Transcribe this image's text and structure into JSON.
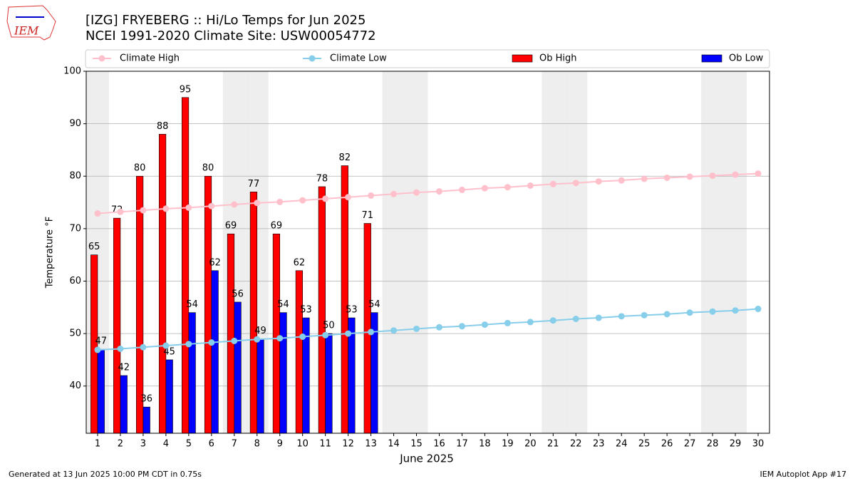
{
  "chart_data": {
    "type": "bar",
    "title": "[IZG] FRYEBERG :: Hi/Lo Temps for Jun 2025",
    "subtitle": "NCEI 1991-2020 Climate Site: USW00054772",
    "logo_text": "IEM",
    "xlabel": "June 2025",
    "ylabel": "Temperature °F",
    "footer_left": "Generated at 13 Jun 2025 10:00 PM CDT in 0.75s",
    "footer_right": "IEM Autoplot App #17",
    "x": [
      1,
      2,
      3,
      4,
      5,
      6,
      7,
      8,
      9,
      10,
      11,
      12,
      13,
      14,
      15,
      16,
      17,
      18,
      19,
      20,
      21,
      22,
      23,
      24,
      25,
      26,
      27,
      28,
      29,
      30
    ],
    "xlim": [
      0.5,
      30.5
    ],
    "ylim": [
      31,
      100
    ],
    "yticks": [
      40,
      50,
      60,
      70,
      80,
      90,
      100
    ],
    "grid": true,
    "shaded_x": [
      1,
      7,
      8,
      14,
      15,
      21,
      22,
      28,
      29
    ],
    "series": [
      {
        "name": "Climate High",
        "type": "line",
        "color": "#ffc0cb",
        "values": [
          72.9,
          73.2,
          73.5,
          73.8,
          74.0,
          74.3,
          74.6,
          74.9,
          75.1,
          75.4,
          75.7,
          76.0,
          76.3,
          76.6,
          76.9,
          77.1,
          77.4,
          77.7,
          77.9,
          78.2,
          78.5,
          78.7,
          79.0,
          79.2,
          79.5,
          79.7,
          79.9,
          80.1,
          80.3,
          80.5
        ]
      },
      {
        "name": "Climate Low",
        "type": "line",
        "color": "#87ceeb",
        "values": [
          46.9,
          47.1,
          47.4,
          47.7,
          48.0,
          48.3,
          48.6,
          48.9,
          49.1,
          49.4,
          49.7,
          50.0,
          50.3,
          50.6,
          50.9,
          51.2,
          51.4,
          51.7,
          52.0,
          52.2,
          52.5,
          52.8,
          53.0,
          53.3,
          53.5,
          53.7,
          54.0,
          54.2,
          54.4,
          54.7
        ]
      },
      {
        "name": "Ob High",
        "type": "bar",
        "color": "#ff0000",
        "values": [
          65,
          72,
          80,
          88,
          95,
          80,
          69,
          77,
          69,
          62,
          78,
          82,
          71,
          null,
          null,
          null,
          null,
          null,
          null,
          null,
          null,
          null,
          null,
          null,
          null,
          null,
          null,
          null,
          null,
          null
        ]
      },
      {
        "name": "Ob Low",
        "type": "bar",
        "color": "#0000ff",
        "values": [
          47,
          42,
          36,
          45,
          54,
          62,
          56,
          49,
          54,
          53,
          50,
          53,
          54,
          null,
          null,
          null,
          null,
          null,
          null,
          null,
          null,
          null,
          null,
          null,
          null,
          null,
          null,
          null,
          null,
          null
        ]
      }
    ]
  }
}
